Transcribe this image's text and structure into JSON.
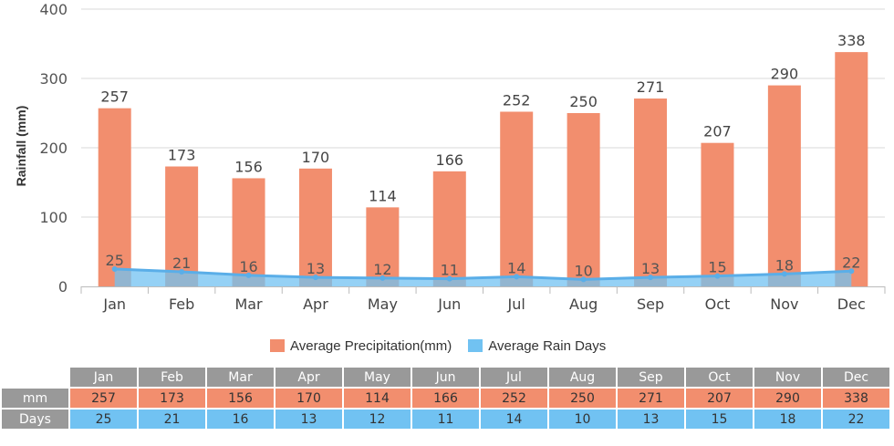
{
  "chart_data": {
    "type": "bar",
    "categories": [
      "Jan",
      "Feb",
      "Mar",
      "Apr",
      "May",
      "Jun",
      "Jul",
      "Aug",
      "Sep",
      "Oct",
      "Nov",
      "Dec"
    ],
    "series": [
      {
        "name": "Average Precipitation(mm)",
        "kind": "bar",
        "color": "#f28e6e",
        "values": [
          257,
          173,
          156,
          170,
          114,
          166,
          252,
          250,
          271,
          207,
          290,
          338
        ]
      },
      {
        "name": "Average Rain Days",
        "kind": "area-line",
        "color": "#71c2f2",
        "values": [
          25,
          21,
          16,
          13,
          12,
          11,
          14,
          10,
          13,
          15,
          18,
          22
        ]
      }
    ],
    "title": "",
    "xlabel": "",
    "ylabel": "Rainfall (mm)",
    "ylim": [
      0,
      400
    ],
    "yticks": [
      0,
      100,
      200,
      300,
      400
    ],
    "grid": true,
    "legend_position": "bottom"
  },
  "table": {
    "row_labels": [
      "mm",
      "Days"
    ]
  }
}
